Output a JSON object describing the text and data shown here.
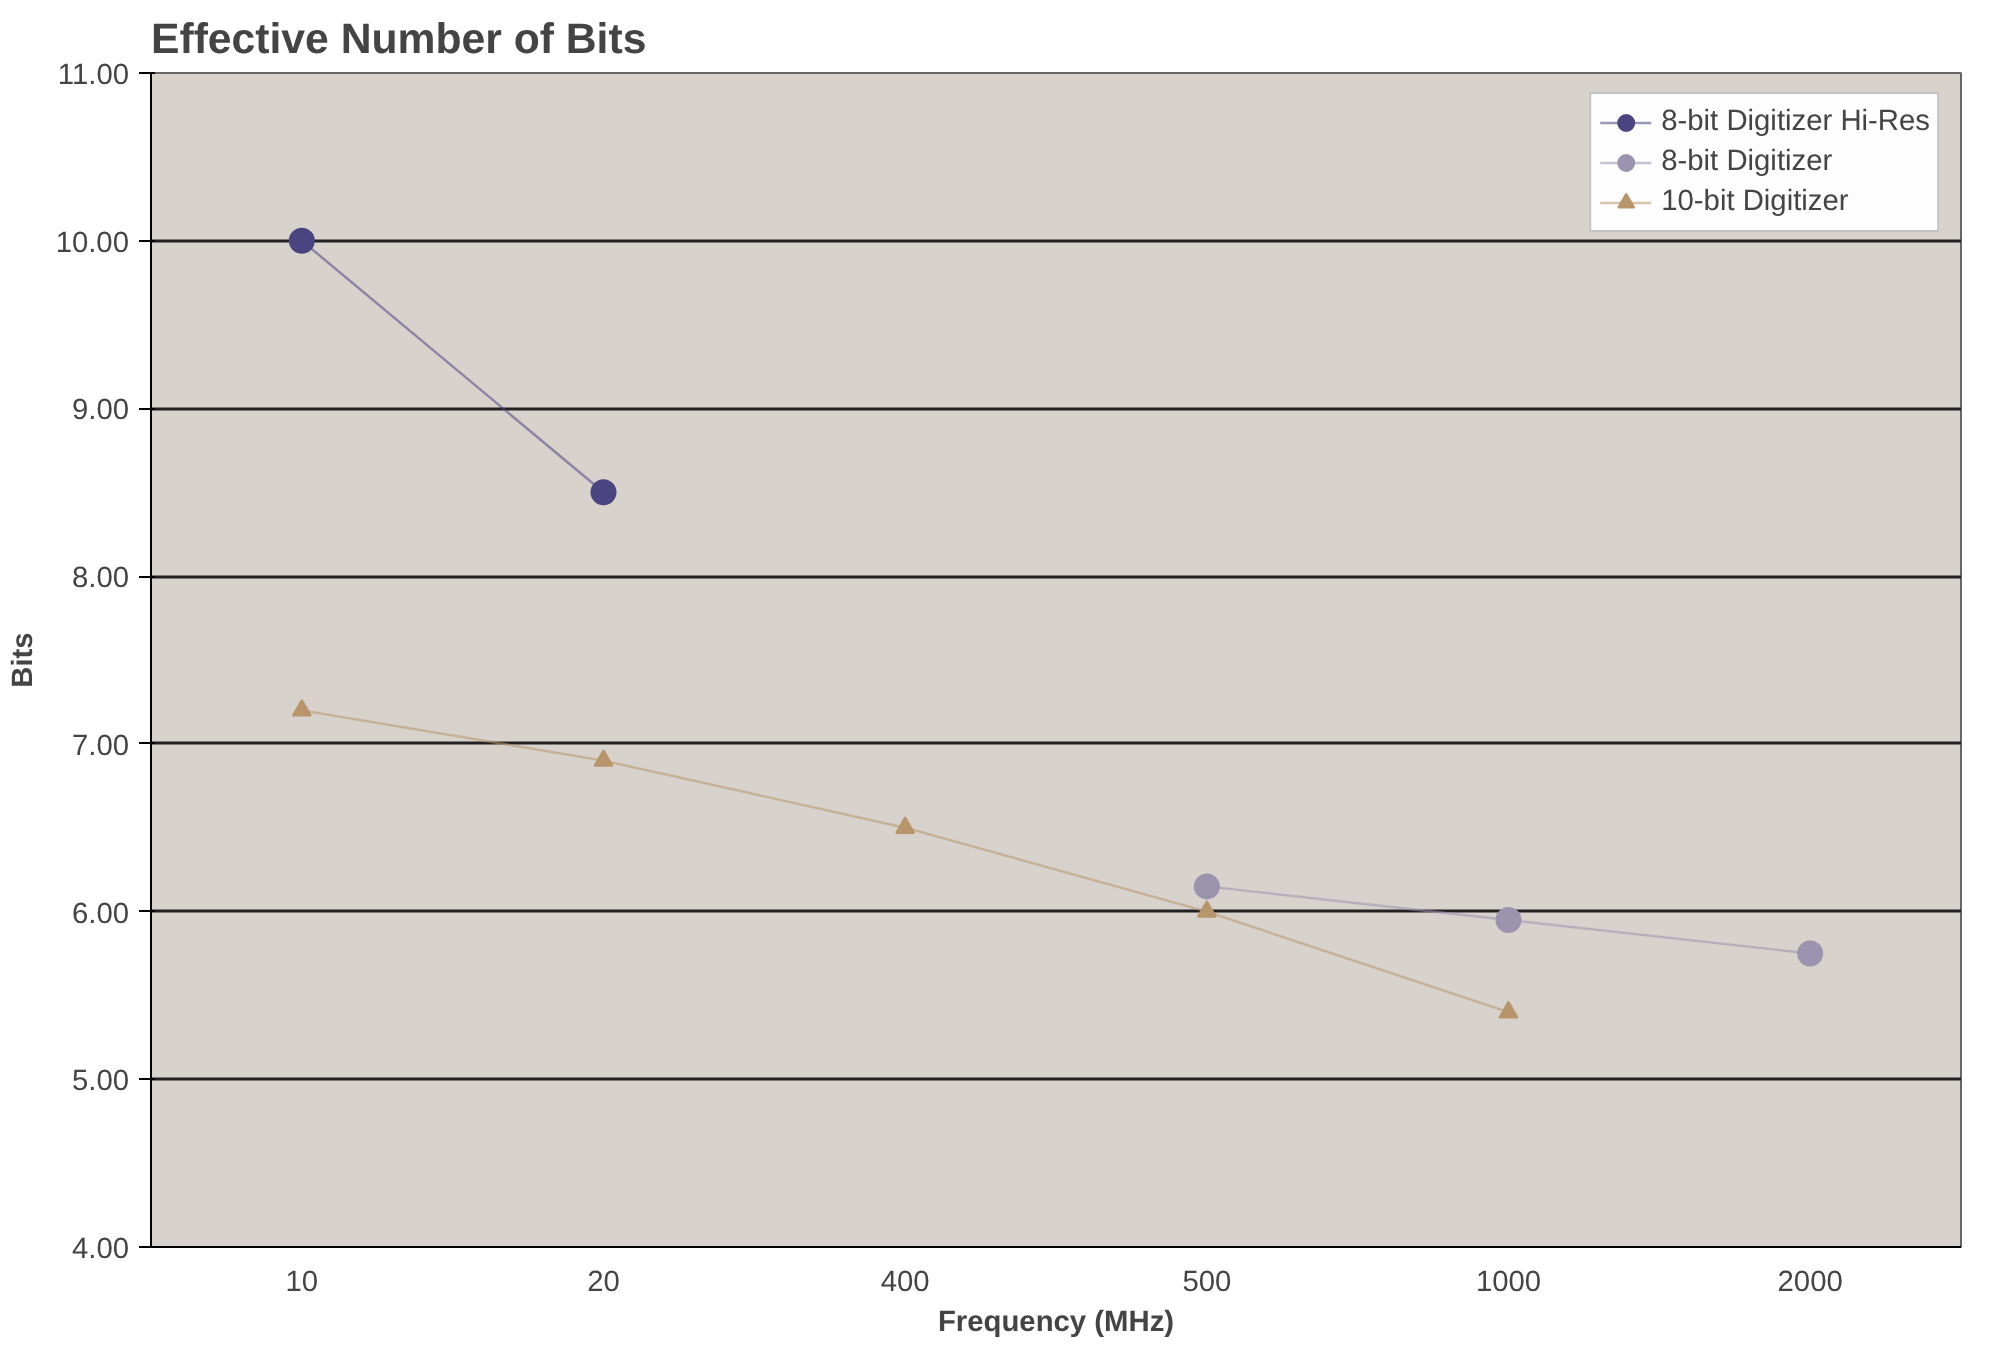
{
  "chart_data": {
    "type": "line",
    "title": "Effective Number of Bits",
    "xlabel": "Frequency (MHz)",
    "ylabel": "Bits",
    "categories": [
      "10",
      "20",
      "400",
      "500",
      "1000",
      "2000"
    ],
    "series": [
      {
        "name": "8-bit Digitizer Hi-Res",
        "color": "#4a4580",
        "marker": "circle",
        "values": [
          10.0,
          8.5,
          null,
          null,
          null,
          null
        ]
      },
      {
        "name": "8-bit Digitizer",
        "color": "#9b94ae",
        "marker": "circle",
        "values": [
          null,
          null,
          null,
          6.15,
          5.95,
          5.75
        ]
      },
      {
        "name": "10-bit Digitizer",
        "color": "#b8956a",
        "marker": "triangle",
        "values": [
          7.2,
          6.9,
          6.5,
          6.0,
          5.4,
          null
        ]
      }
    ],
    "ylim": [
      4,
      11
    ],
    "yticks": [
      {
        "value": 4,
        "label": "4.00"
      },
      {
        "value": 5,
        "label": "5.00"
      },
      {
        "value": 6,
        "label": "6.00"
      },
      {
        "value": 7,
        "label": "7.00"
      },
      {
        "value": 8,
        "label": "8.00"
      },
      {
        "value": 9,
        "label": "9.00"
      },
      {
        "value": 10,
        "label": "10.00"
      },
      {
        "value": 11,
        "label": "11.00"
      }
    ],
    "grid": "y",
    "legend": "top right"
  }
}
